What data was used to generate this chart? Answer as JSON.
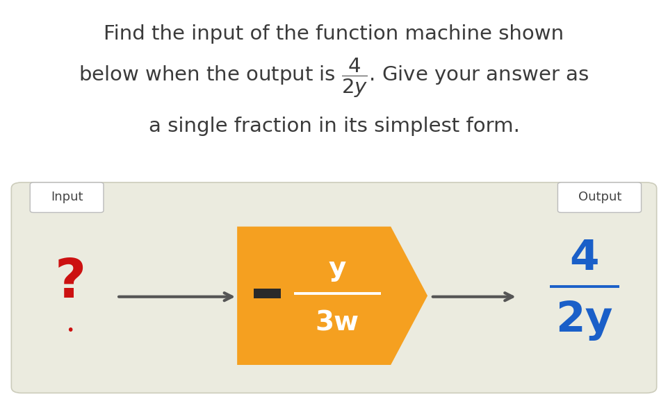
{
  "bg_color": "#ffffff",
  "title_line1": "Find the input of the function machine shown",
  "title_line2": "below when the output is $\\dfrac{4}{2y}$. Give your answer as",
  "title_line3": "a single fraction in its simplest form.",
  "title_fontsize": 21,
  "title_color": "#3a3a3a",
  "box_bg": "#ebebdf",
  "box_outline": "#ccccbb",
  "input_label": "Input",
  "output_label": "Output",
  "label_fontsize": 13,
  "label_color": "#444444",
  "label_box_color": "#ffffff",
  "question_color": "#cc1111",
  "question_mark": "?",
  "question_dot": "•",
  "question_fontsize": 56,
  "arrow_color": "#555555",
  "machine_color": "#f5a020",
  "machine_text_color": "#ffffff",
  "machine_frac_num": "y",
  "machine_frac_den": "3w",
  "machine_fontsize_num": 28,
  "machine_fontsize_den": 28,
  "minus_color": "#2a2a2a",
  "output_color": "#1a5fc8",
  "output_frac_num": "4",
  "output_frac_den": "2y",
  "output_fontsize": 44
}
